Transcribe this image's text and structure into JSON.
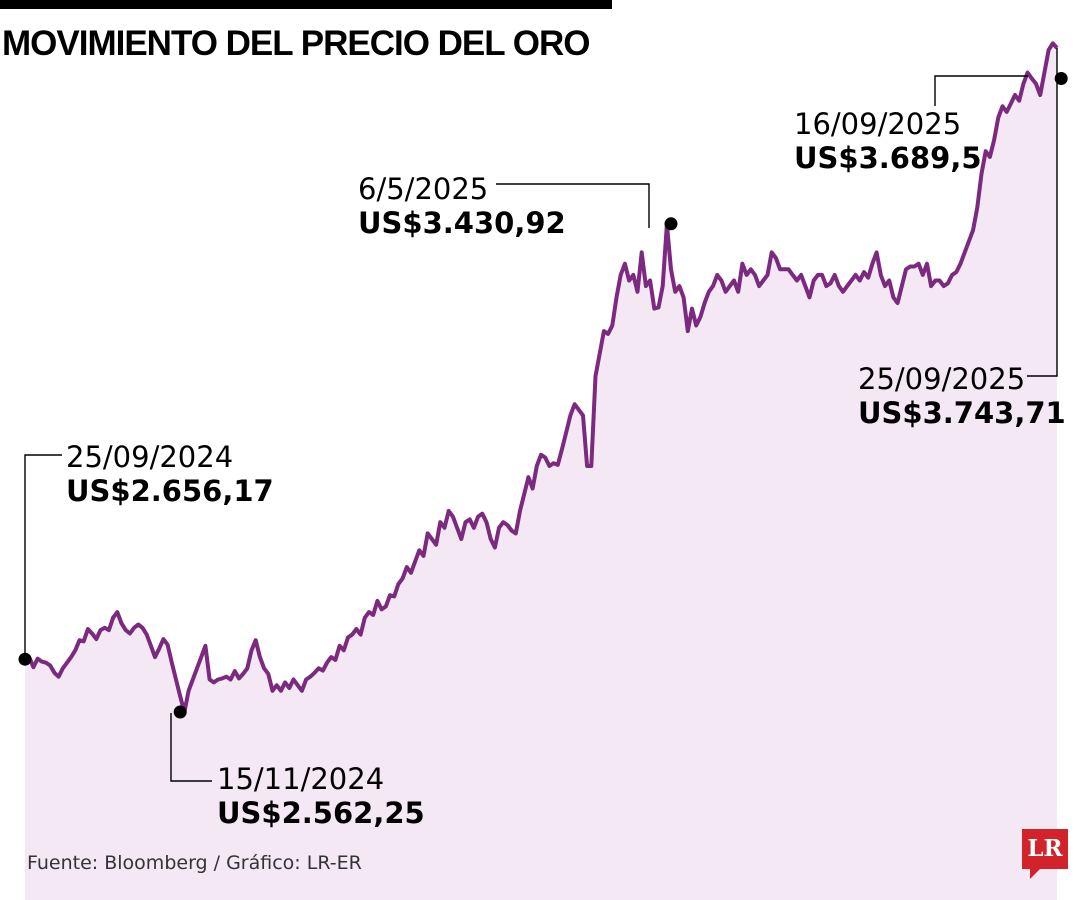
{
  "title": "MOVIMIENTO DEL PRECIO DEL ORO",
  "source": "Fuente: Bloomberg / Gráfico: LR-ER",
  "logo": {
    "text": "LR",
    "color": "#d2232a"
  },
  "colors": {
    "line": "#7b2a7f",
    "fill": "#f3e8f3",
    "illustration": "#e0c6e3"
  },
  "chart_data": {
    "type": "line",
    "title": "MOVIMIENTO DEL PRECIO DEL ORO",
    "xlabel": "",
    "ylabel": "",
    "ylim": [
      2350,
      3800
    ],
    "grid": false,
    "annotations": [
      {
        "date": "25/09/2024",
        "label": "US$2.656,17",
        "value": 2656.17,
        "index": 0
      },
      {
        "date": "15/11/2024",
        "label": "US$2.562,25",
        "value": 2562.25,
        "index": 37
      },
      {
        "date": "6/5/2025",
        "label": "US$3.430,92",
        "value": 3430.92,
        "index": 154
      },
      {
        "date": "16/09/2025",
        "label": "US$3.689,5",
        "value": 3689.5,
        "index": 247
      },
      {
        "date": "25/09/2025",
        "label": "US$3.743,71",
        "value": 3743.71,
        "index": 254
      }
    ],
    "series": [
      {
        "x_start": "25/09/2024",
        "x_end": "25/09/2025",
        "values": [
          2656,
          2660,
          2642,
          2657,
          2652,
          2650,
          2645,
          2632,
          2625,
          2640,
          2650,
          2660,
          2672,
          2690,
          2688,
          2710,
          2702,
          2692,
          2708,
          2712,
          2708,
          2730,
          2740,
          2720,
          2708,
          2702,
          2712,
          2718,
          2712,
          2700,
          2680,
          2660,
          2675,
          2692,
          2682,
          2650,
          2620,
          2590,
          2562,
          2600,
          2620,
          2640,
          2660,
          2680,
          2620,
          2615,
          2620,
          2622,
          2625,
          2620,
          2635,
          2622,
          2630,
          2640,
          2672,
          2690,
          2660,
          2640,
          2630,
          2600,
          2610,
          2600,
          2615,
          2605,
          2620,
          2610,
          2600,
          2620,
          2625,
          2632,
          2640,
          2636,
          2650,
          2660,
          2655,
          2680,
          2672,
          2695,
          2700,
          2710,
          2700,
          2730,
          2740,
          2735,
          2760,
          2745,
          2750,
          2770,
          2768,
          2790,
          2800,
          2820,
          2810,
          2830,
          2850,
          2840,
          2880,
          2870,
          2860,
          2900,
          2890,
          2920,
          2910,
          2890,
          2870,
          2900,
          2905,
          2890,
          2910,
          2915,
          2900,
          2870,
          2855,
          2890,
          2900,
          2895,
          2885,
          2880,
          2920,
          2950,
          2980,
          2960,
          3000,
          3020,
          3015,
          3000,
          3005,
          3002,
          3030,
          3060,
          3090,
          3110,
          3100,
          3090,
          3000,
          3000,
          3160,
          3200,
          3240,
          3235,
          3250,
          3300,
          3340,
          3360,
          3330,
          3340,
          3310,
          3380,
          3320,
          3330,
          3280,
          3282,
          3320,
          3430,
          3350,
          3310,
          3320,
          3300,
          3240,
          3280,
          3250,
          3265,
          3290,
          3310,
          3320,
          3340,
          3330,
          3310,
          3320,
          3330,
          3310,
          3360,
          3340,
          3350,
          3340,
          3320,
          3330,
          3340,
          3380,
          3370,
          3350,
          3350,
          3350,
          3340,
          3330,
          3340,
          3320,
          3300,
          3330,
          3340,
          3340,
          3320,
          3325,
          3340,
          3320,
          3310,
          3320,
          3330,
          3340,
          3330,
          3345,
          3335,
          3360,
          3380,
          3340,
          3320,
          3330,
          3300,
          3290,
          3320,
          3350,
          3355,
          3355,
          3360,
          3340,
          3360,
          3320,
          3330,
          3330,
          3320,
          3325,
          3340,
          3345,
          3360,
          3380,
          3400,
          3420,
          3460,
          3520,
          3560,
          3550,
          3580,
          3620,
          3640,
          3630,
          3645,
          3660,
          3650,
          3680,
          3700,
          3689.5,
          3680,
          3660,
          3700,
          3740,
          3752,
          3743.71
        ]
      }
    ]
  }
}
